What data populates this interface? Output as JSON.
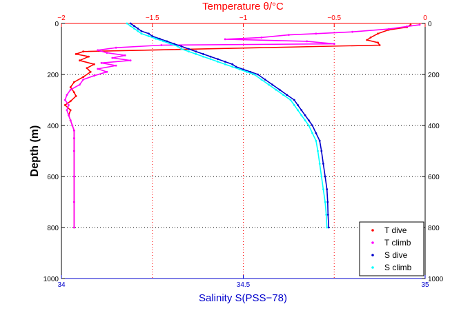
{
  "chart_data": {
    "type": "scatter",
    "title": "",
    "top_axis": {
      "label": "Temperature θ/°C",
      "range": [
        -2,
        0
      ],
      "ticks": [
        -2,
        -1.5,
        -1,
        -0.5,
        0
      ],
      "tick_labels": [
        "−2",
        "−1.5",
        "−1",
        "−0.5",
        "0"
      ],
      "color": "#ff0000"
    },
    "bottom_axis": {
      "label": "Salinity S(PSS−78)",
      "range": [
        34,
        35
      ],
      "ticks": [
        34,
        34.5,
        35
      ],
      "tick_labels": [
        "34",
        "34.5",
        "35"
      ],
      "color": "#0000cc"
    },
    "y_axis": {
      "label": "Depth (m)",
      "range": [
        0,
        1000
      ],
      "reversed": true,
      "ticks": [
        0,
        200,
        400,
        600,
        800,
        1000
      ],
      "tick_labels": [
        "0",
        "200",
        "400",
        "600",
        "800",
        "1000"
      ]
    },
    "grid": true,
    "grid_style": "dotted",
    "legend_position": "bottom-right",
    "series": [
      {
        "name": "T dive",
        "axis": "top",
        "color": "#ff0000",
        "points": [
          [
            -0.08,
            5
          ],
          [
            -0.1,
            15
          ],
          [
            -0.2,
            25
          ],
          [
            -0.26,
            40
          ],
          [
            -0.3,
            55
          ],
          [
            -0.32,
            65
          ],
          [
            -0.26,
            75
          ],
          [
            -0.25,
            85
          ],
          [
            -1.88,
            110
          ],
          [
            -1.92,
            120
          ],
          [
            -1.85,
            130
          ],
          [
            -1.9,
            145
          ],
          [
            -1.82,
            160
          ],
          [
            -1.86,
            175
          ],
          [
            -1.84,
            190
          ],
          [
            -1.88,
            210
          ],
          [
            -1.93,
            230
          ],
          [
            -1.95,
            250
          ],
          [
            -1.93,
            270
          ],
          [
            -1.92,
            285
          ],
          [
            -1.95,
            305
          ],
          [
            -1.98,
            320
          ],
          [
            -1.95,
            340
          ],
          [
            -1.96,
            360
          ],
          [
            -1.95,
            380
          ],
          [
            -1.94,
            400
          ],
          [
            -1.93,
            420
          ],
          [
            -1.93,
            450
          ],
          [
            -1.93,
            500
          ],
          [
            -1.93,
            600
          ],
          [
            -1.93,
            700
          ],
          [
            -1.93,
            800
          ]
        ]
      },
      {
        "name": "T climb",
        "axis": "top",
        "color": "#ff00ff",
        "points": [
          [
            -0.03,
            5
          ],
          [
            -0.1,
            12
          ],
          [
            -0.2,
            22
          ],
          [
            -0.4,
            33
          ],
          [
            -0.6,
            40
          ],
          [
            -0.75,
            45
          ],
          [
            -0.9,
            55
          ],
          [
            -1.1,
            62
          ],
          [
            -0.65,
            70
          ],
          [
            -0.5,
            80
          ],
          [
            -1.45,
            85
          ],
          [
            -1.7,
            95
          ],
          [
            -1.8,
            105
          ],
          [
            -1.75,
            115
          ],
          [
            -1.65,
            125
          ],
          [
            -1.72,
            135
          ],
          [
            -1.62,
            145
          ],
          [
            -1.78,
            155
          ],
          [
            -1.7,
            165
          ],
          [
            -1.8,
            178
          ],
          [
            -1.75,
            190
          ],
          [
            -1.82,
            205
          ],
          [
            -1.88,
            220
          ],
          [
            -1.9,
            240
          ],
          [
            -1.95,
            260
          ],
          [
            -1.97,
            280
          ],
          [
            -1.98,
            300
          ],
          [
            -1.96,
            320
          ],
          [
            -1.97,
            340
          ],
          [
            -1.96,
            360
          ],
          [
            -1.95,
            380
          ],
          [
            -1.94,
            400
          ],
          [
            -1.93,
            420
          ],
          [
            -1.93,
            450
          ],
          [
            -1.93,
            500
          ],
          [
            -1.93,
            600
          ],
          [
            -1.93,
            700
          ],
          [
            -1.93,
            800
          ]
        ]
      },
      {
        "name": "S dive",
        "axis": "bottom",
        "color": "#0000cc",
        "points": [
          [
            34.19,
            0
          ],
          [
            34.2,
            10
          ],
          [
            34.21,
            20
          ],
          [
            34.22,
            30
          ],
          [
            34.24,
            40
          ],
          [
            34.25,
            50
          ],
          [
            34.27,
            60
          ],
          [
            34.29,
            70
          ],
          [
            34.31,
            80
          ],
          [
            34.33,
            90
          ],
          [
            34.35,
            100
          ],
          [
            34.37,
            110
          ],
          [
            34.39,
            120
          ],
          [
            34.41,
            130
          ],
          [
            34.43,
            140
          ],
          [
            34.45,
            150
          ],
          [
            34.47,
            160
          ],
          [
            34.48,
            170
          ],
          [
            34.5,
            180
          ],
          [
            34.52,
            190
          ],
          [
            34.54,
            200
          ],
          [
            34.56,
            220
          ],
          [
            34.58,
            240
          ],
          [
            34.6,
            260
          ],
          [
            34.62,
            280
          ],
          [
            34.64,
            300
          ],
          [
            34.65,
            320
          ],
          [
            34.66,
            340
          ],
          [
            34.67,
            360
          ],
          [
            34.68,
            380
          ],
          [
            34.69,
            400
          ],
          [
            34.7,
            430
          ],
          [
            34.71,
            460
          ],
          [
            34.715,
            500
          ],
          [
            34.72,
            550
          ],
          [
            34.725,
            600
          ],
          [
            34.73,
            650
          ],
          [
            34.732,
            700
          ],
          [
            34.733,
            750
          ],
          [
            34.735,
            800
          ]
        ]
      },
      {
        "name": "S climb",
        "axis": "bottom",
        "color": "#00ffff",
        "points": [
          [
            34.18,
            0
          ],
          [
            34.19,
            10
          ],
          [
            34.2,
            20
          ],
          [
            34.21,
            30
          ],
          [
            34.22,
            40
          ],
          [
            34.24,
            50
          ],
          [
            34.26,
            60
          ],
          [
            34.28,
            70
          ],
          [
            34.3,
            80
          ],
          [
            34.32,
            90
          ],
          [
            34.33,
            100
          ],
          [
            34.35,
            110
          ],
          [
            34.37,
            120
          ],
          [
            34.39,
            130
          ],
          [
            34.41,
            140
          ],
          [
            34.43,
            150
          ],
          [
            34.45,
            160
          ],
          [
            34.47,
            170
          ],
          [
            34.49,
            180
          ],
          [
            34.51,
            190
          ],
          [
            34.53,
            200
          ],
          [
            34.55,
            220
          ],
          [
            34.57,
            240
          ],
          [
            34.59,
            260
          ],
          [
            34.61,
            280
          ],
          [
            34.63,
            300
          ],
          [
            34.64,
            320
          ],
          [
            34.65,
            340
          ],
          [
            34.66,
            360
          ],
          [
            34.67,
            380
          ],
          [
            34.68,
            400
          ],
          [
            34.69,
            430
          ],
          [
            34.7,
            460
          ],
          [
            34.705,
            500
          ],
          [
            34.71,
            550
          ],
          [
            34.715,
            600
          ],
          [
            34.72,
            650
          ],
          [
            34.725,
            700
          ],
          [
            34.728,
            750
          ],
          [
            34.73,
            800
          ]
        ]
      }
    ]
  }
}
